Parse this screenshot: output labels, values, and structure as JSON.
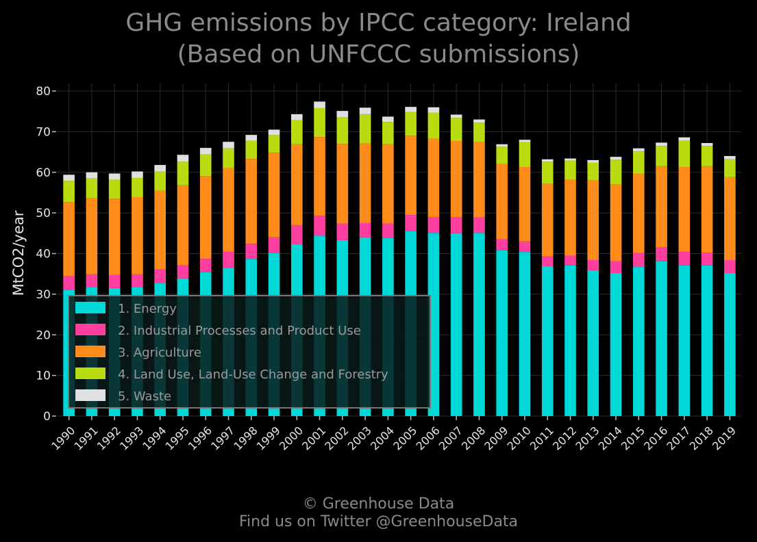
{
  "header": {
    "title_line1": "GHG emissions by IPCC category: Ireland",
    "title_line2": "(Based on UNFCCC submissions)"
  },
  "footer": {
    "line1": "© Greenhouse Data",
    "line2": "Find us on Twitter @GreenhouseData"
  },
  "chart_data": {
    "type": "bar",
    "stacked": true,
    "title": "GHG emissions by IPCC category: Ireland (Based on UNFCCC submissions)",
    "ylabel": "MtCO2/year",
    "xlabel": "",
    "ylim": [
      0,
      80
    ],
    "yticks": [
      0,
      10,
      20,
      30,
      40,
      50,
      60,
      70,
      80
    ],
    "grid": true,
    "legend_position": "lower-left",
    "categories": [
      "1990",
      "1991",
      "1992",
      "1993",
      "1994",
      "1995",
      "1996",
      "1997",
      "1998",
      "1999",
      "2000",
      "2001",
      "2002",
      "2003",
      "2004",
      "2005",
      "2006",
      "2007",
      "2008",
      "2009",
      "2010",
      "2011",
      "2012",
      "2013",
      "2014",
      "2015",
      "2016",
      "2017",
      "2018",
      "2019"
    ],
    "series": [
      {
        "name": "1. Energy",
        "color": "#00d8d8",
        "values": [
          31.0,
          31.8,
          31.5,
          31.8,
          32.8,
          33.9,
          35.4,
          36.5,
          38.7,
          40.1,
          42.3,
          44.4,
          43.3,
          44.0,
          43.8,
          45.6,
          45.1,
          45.0,
          45.1,
          40.8,
          40.4,
          36.9,
          37.1,
          35.9,
          35.2,
          36.7,
          38.1,
          37.1,
          37.1,
          35.2
        ]
      },
      {
        "name": "2. Industrial Processes and Product Use",
        "color": "#ff3fa0",
        "values": [
          3.4,
          3.1,
          3.2,
          3.1,
          3.3,
          3.2,
          3.3,
          4.0,
          3.7,
          3.9,
          4.7,
          4.9,
          4.1,
          3.5,
          3.6,
          3.9,
          3.9,
          4.0,
          3.8,
          2.7,
          2.6,
          2.4,
          2.4,
          2.5,
          2.9,
          3.4,
          3.5,
          3.4,
          3.1,
          3.2
        ]
      },
      {
        "name": "3. Agriculture",
        "color": "#ff8c1a",
        "values": [
          18.3,
          18.7,
          18.8,
          19.0,
          19.4,
          19.7,
          20.4,
          20.5,
          20.9,
          20.8,
          19.9,
          19.4,
          19.6,
          19.7,
          19.5,
          19.5,
          19.3,
          18.7,
          18.5,
          18.5,
          18.3,
          17.9,
          18.7,
          19.6,
          19.0,
          19.5,
          19.9,
          20.8,
          21.3,
          20.4
        ]
      },
      {
        "name": "4. Land Use, Land-Use Change and Forestry",
        "color": "#b8dc10",
        "values": [
          5.2,
          4.9,
          4.7,
          4.7,
          4.7,
          5.8,
          5.3,
          4.9,
          4.5,
          4.4,
          5.9,
          7.1,
          6.6,
          7.1,
          5.5,
          5.8,
          6.4,
          5.7,
          4.8,
          4.3,
          6.1,
          5.4,
          4.7,
          4.4,
          6.0,
          5.6,
          5.0,
          6.5,
          5.0,
          4.4
        ]
      },
      {
        "name": "5. Waste",
        "color": "#e0e0e0",
        "values": [
          1.5,
          1.5,
          1.5,
          1.6,
          1.6,
          1.7,
          1.6,
          1.6,
          1.4,
          1.3,
          1.5,
          1.6,
          1.5,
          1.6,
          1.3,
          1.3,
          1.3,
          0.8,
          0.8,
          0.6,
          0.6,
          0.6,
          0.5,
          0.6,
          0.7,
          0.7,
          0.8,
          0.8,
          0.7,
          0.8
        ]
      }
    ]
  }
}
